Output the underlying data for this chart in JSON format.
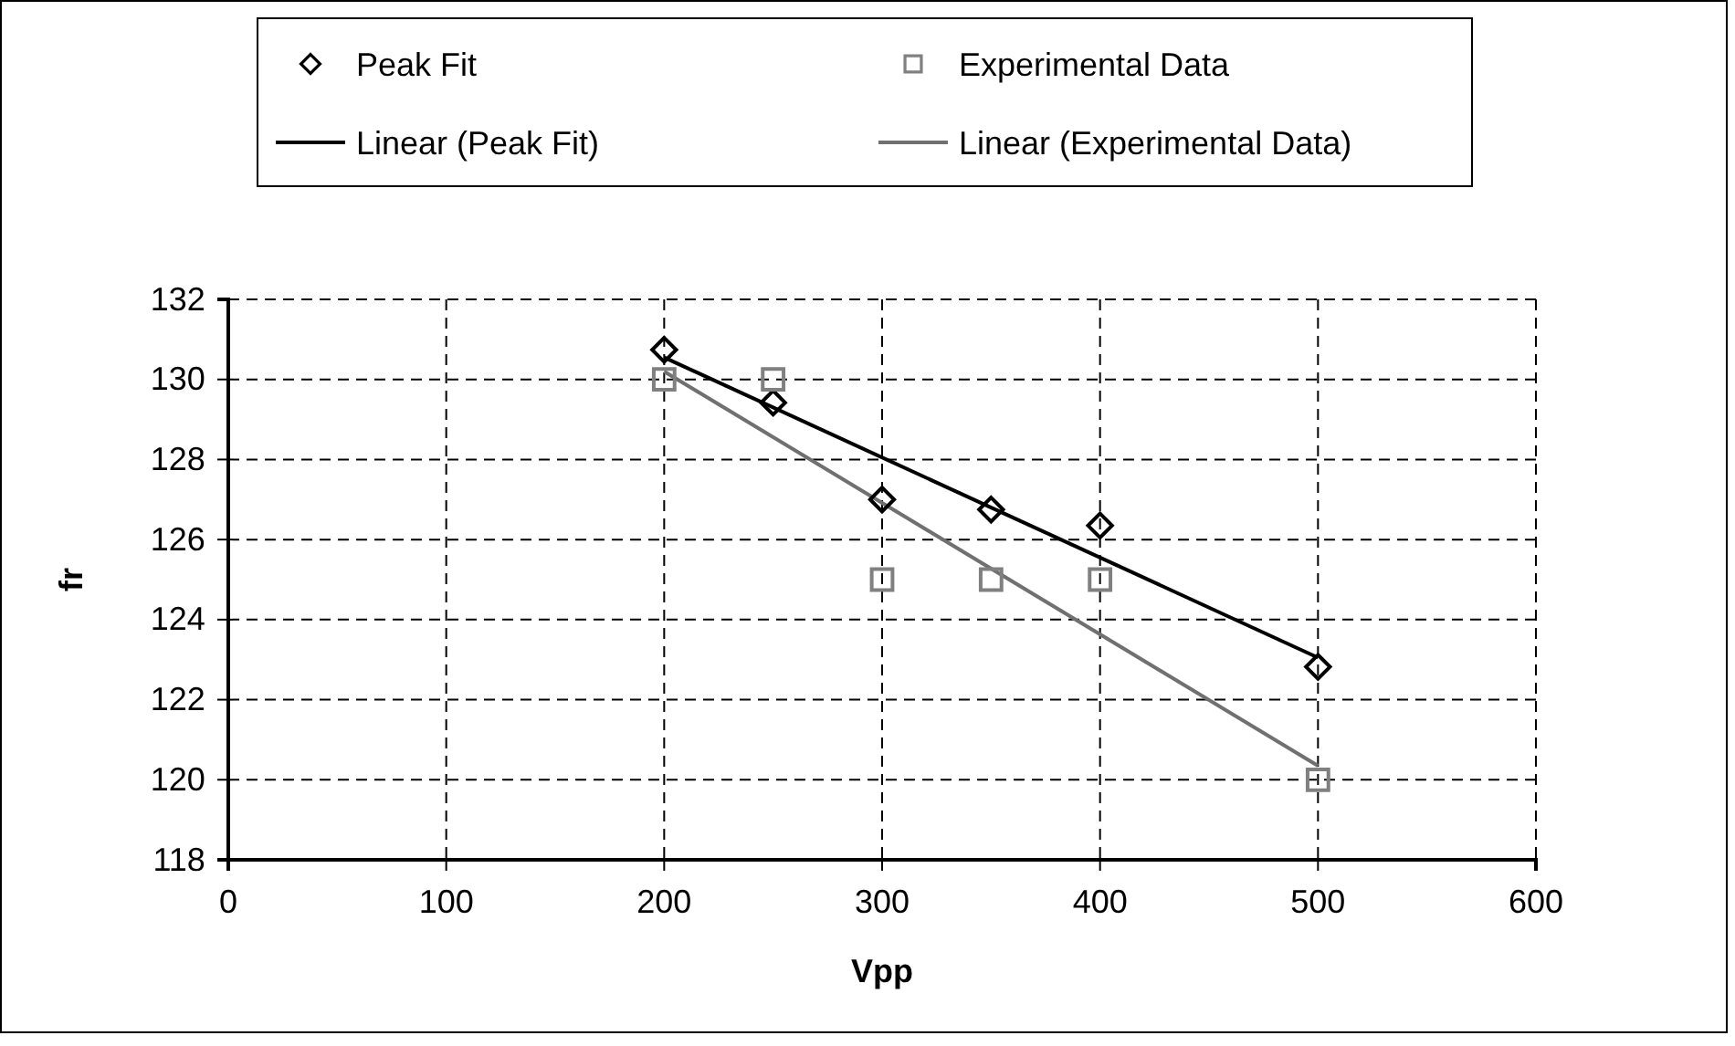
{
  "chart_data": {
    "type": "scatter",
    "xlabel": "Vpp",
    "ylabel": "fr",
    "xlim": [
      0,
      600
    ],
    "xticks": [
      0,
      100,
      200,
      300,
      400,
      500,
      600
    ],
    "ylim": [
      118,
      132
    ],
    "yticks": [
      118,
      120,
      122,
      124,
      126,
      128,
      130,
      132
    ],
    "grid": true,
    "legend": "top",
    "series": [
      {
        "name": "Peak Fit",
        "marker": "diamond",
        "color": "#000000",
        "x": [
          200,
          250,
          300,
          350,
          400,
          500
        ],
        "values": [
          130.74,
          129.42,
          127.0,
          126.75,
          126.35,
          122.82
        ]
      },
      {
        "name": "Experimental Data",
        "marker": "square",
        "color": "#808080",
        "x": [
          200,
          250,
          300,
          350,
          400,
          500
        ],
        "values": [
          130,
          130,
          125,
          125,
          125,
          120
        ]
      },
      {
        "name": "Linear (Peak Fit)",
        "type": "line",
        "marker": "none",
        "color": "#000000",
        "x": [
          200,
          500
        ],
        "values": [
          130.55,
          123.05
        ]
      },
      {
        "name": "Linear (Experimental Data)",
        "type": "line",
        "marker": "none",
        "color": "#707070",
        "x": [
          200,
          500
        ],
        "values": [
          130.2,
          120.35
        ]
      }
    ]
  }
}
